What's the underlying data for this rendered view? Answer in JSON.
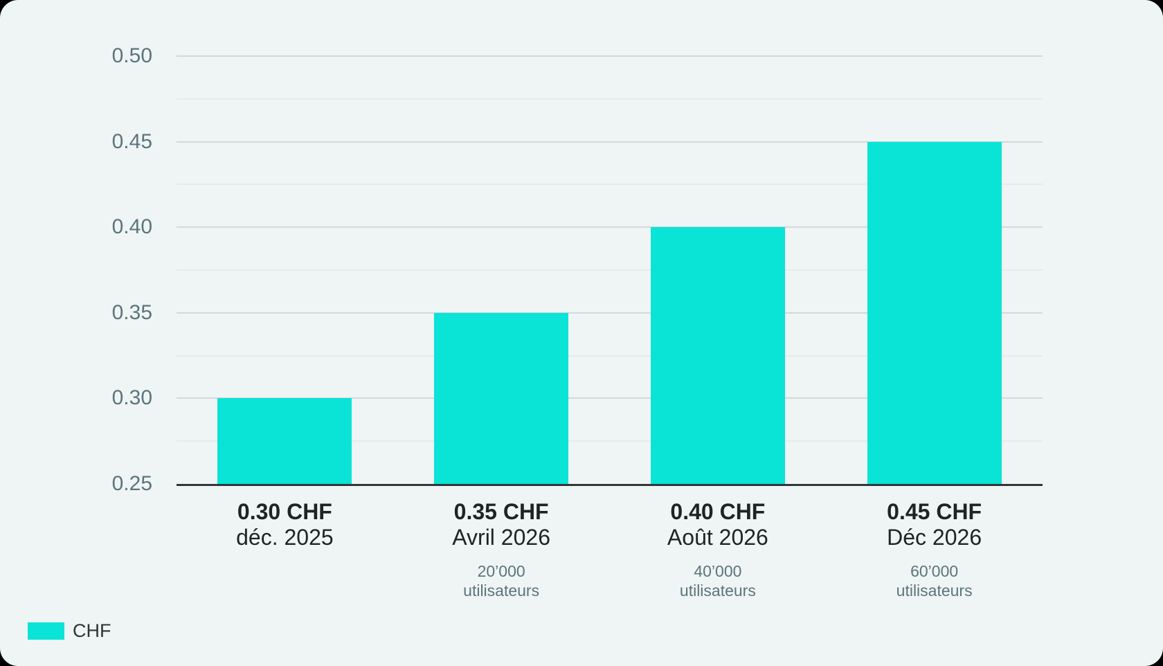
{
  "colors": {
    "accent": "#0ae4d6",
    "card_background": "#eff4f5",
    "outside_background": "#000000",
    "grid_major": "#d5d8d9",
    "grid_minor": "#e6eaea",
    "axis_line": "#30363a",
    "text_dark": "#1e2324",
    "text_muted": "#5b757b"
  },
  "chart_data": {
    "type": "bar",
    "title": "",
    "xlabel": "",
    "ylabel": "",
    "ylim": [
      0.25,
      0.5
    ],
    "tick_step": 0.05,
    "minor_step": 0.025,
    "grid": "horizontal, major and minor lines",
    "legend_position": "bottom-left",
    "y_ticks": [
      "0.25",
      "0.30",
      "0.35",
      "0.40",
      "0.45",
      "0.50"
    ],
    "series": [
      {
        "name": "CHF",
        "color": "#0ae4d6",
        "values": [
          0.3,
          0.35,
          0.4,
          0.45
        ]
      }
    ],
    "categories": [
      {
        "value_label": "0.30 CHF",
        "date_label": "déc. 2025",
        "users_count": "",
        "users_word": ""
      },
      {
        "value_label": "0.35 CHF",
        "date_label": "Avril 2026",
        "users_count": "20’000",
        "users_word": "utilisateurs"
      },
      {
        "value_label": "0.40 CHF",
        "date_label": "Août 2026",
        "users_count": "40’000",
        "users_word": "utilisateurs"
      },
      {
        "value_label": "0.45 CHF",
        "date_label": "Déc 2026",
        "users_count": "60’000",
        "users_word": "utilisateurs"
      }
    ]
  },
  "legend": {
    "label": "CHF",
    "swatch_color": "#0ae4d6"
  }
}
